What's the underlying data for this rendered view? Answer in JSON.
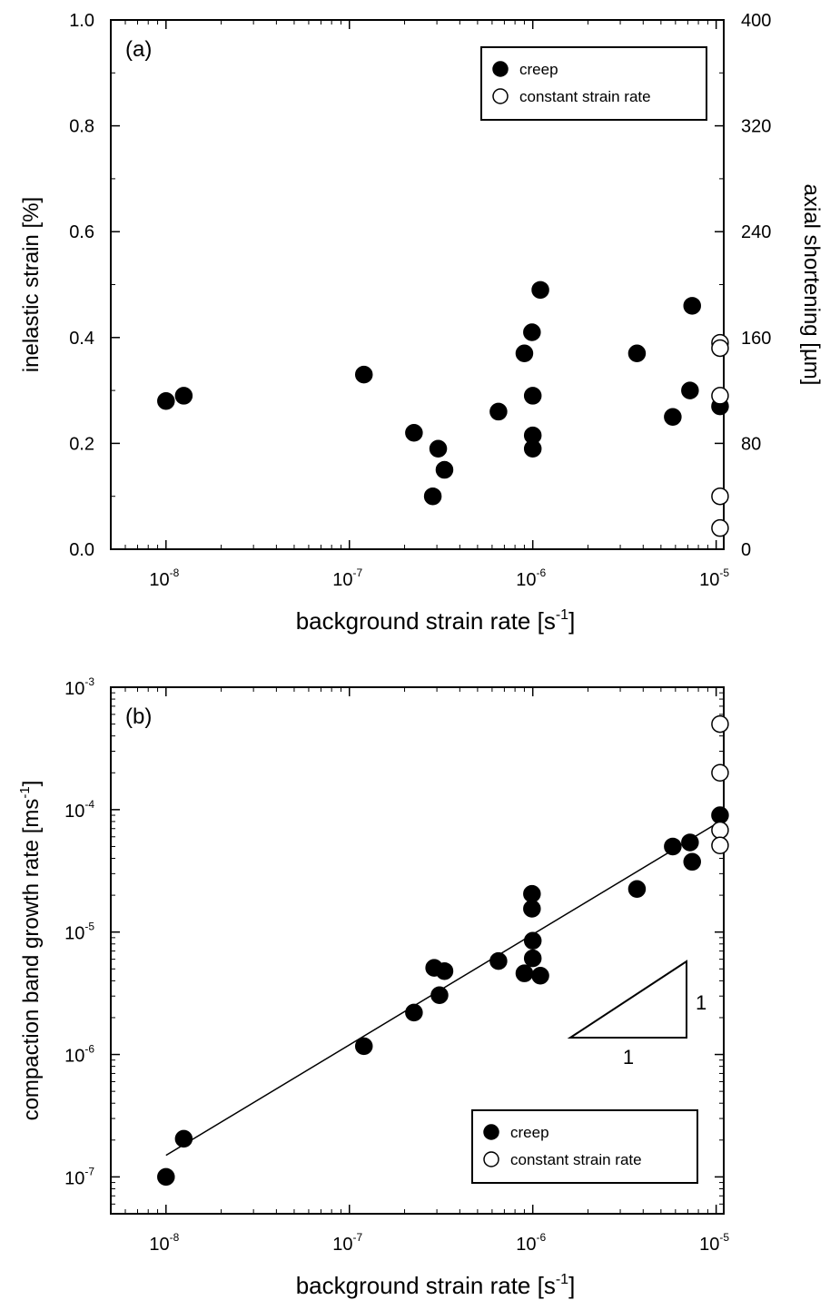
{
  "chart_data": [
    {
      "type": "scatter",
      "panel_label": "(a)",
      "xlabel": "background strain rate [s",
      "xlabel_sup": "-1",
      "xlabel_end": "]",
      "xscale": "log",
      "xlim": [
        5e-09,
        1.1e-05
      ],
      "x_ticks": [
        {
          "value": 1e-08,
          "base": "10",
          "exp": "-8"
        },
        {
          "value": 1e-07,
          "base": "10",
          "exp": "-7"
        },
        {
          "value": 1e-06,
          "base": "10",
          "exp": "-6"
        },
        {
          "value": 1e-05,
          "base": "10",
          "exp": "-5"
        }
      ],
      "ylabel": "inelastic strain [%]",
      "ylim": [
        0,
        1.0
      ],
      "y_ticks": [
        "0.0",
        "0.2",
        "0.4",
        "0.6",
        "0.8",
        "1.0"
      ],
      "y2label": "axial shortening [µm]",
      "y2lim": [
        0,
        400
      ],
      "y2_ticks": [
        "0",
        "80",
        "160",
        "240",
        "320",
        "400"
      ],
      "legend_position": "top-right",
      "series": [
        {
          "name": "creep",
          "marker": "filled-circle",
          "points": [
            [
              1e-08,
              0.28
            ],
            [
              1.25e-08,
              0.29
            ],
            [
              1.2e-07,
              0.33
            ],
            [
              2.25e-07,
              0.22
            ],
            [
              2.85e-07,
              0.1
            ],
            [
              3.05e-07,
              0.19
            ],
            [
              3.3e-07,
              0.15
            ],
            [
              6.5e-07,
              0.26
            ],
            [
              9e-07,
              0.37
            ],
            [
              9.9e-07,
              0.41
            ],
            [
              1e-06,
              0.29
            ],
            [
              1e-06,
              0.215
            ],
            [
              1e-06,
              0.19
            ],
            [
              1.1e-06,
              0.49
            ],
            [
              3.7e-06,
              0.37
            ],
            [
              5.8e-06,
              0.25
            ],
            [
              7.2e-06,
              0.3
            ],
            [
              7.4e-06,
              0.46
            ],
            [
              1.05e-05,
              0.27
            ]
          ]
        },
        {
          "name": "constant strain rate",
          "marker": "open-circle",
          "points": [
            [
              1.05e-05,
              0.39
            ],
            [
              1.05e-05,
              0.38
            ],
            [
              1.05e-05,
              0.29
            ],
            [
              1.05e-05,
              0.1
            ],
            [
              1.05e-05,
              0.04
            ]
          ]
        }
      ]
    },
    {
      "type": "scatter",
      "panel_label": "(b)",
      "xlabel": "background strain rate [s",
      "xlabel_sup": "-1",
      "xlabel_end": "]",
      "xscale": "log",
      "xlim": [
        5e-09,
        1.1e-05
      ],
      "x_ticks": [
        {
          "value": 1e-08,
          "base": "10",
          "exp": "-8"
        },
        {
          "value": 1e-07,
          "base": "10",
          "exp": "-7"
        },
        {
          "value": 1e-06,
          "base": "10",
          "exp": "-6"
        },
        {
          "value": 1e-05,
          "base": "10",
          "exp": "-5"
        }
      ],
      "ylabel": "compaction band growth rate [ms",
      "ylabel_sup": "-1",
      "ylabel_end": "]",
      "yscale": "log",
      "ylim": [
        5e-08,
        0.001
      ],
      "y_ticks": [
        {
          "value": 1e-07,
          "base": "10",
          "exp": "-7"
        },
        {
          "value": 1e-06,
          "base": "10",
          "exp": "-6"
        },
        {
          "value": 1e-05,
          "base": "10",
          "exp": "-5"
        },
        {
          "value": 0.0001,
          "base": "10",
          "exp": "-4"
        },
        {
          "value": 0.001,
          "base": "10",
          "exp": "-3"
        }
      ],
      "legend_position": "bottom-right",
      "fit_line": {
        "x": [
          1e-08,
          1.05e-05
        ],
        "y": [
          1.5e-07,
          8e-05
        ]
      },
      "slope_triangle": {
        "vertical_label": "1",
        "horizontal_label": "1"
      },
      "series": [
        {
          "name": "creep",
          "marker": "filled-circle",
          "points": [
            [
              1e-08,
              1e-07
            ],
            [
              1.25e-08,
              2.05e-07
            ],
            [
              1.2e-07,
              1.17e-06
            ],
            [
              2.25e-07,
              2.2e-06
            ],
            [
              2.9e-07,
              5.1e-06
            ],
            [
              3.1e-07,
              3.05e-06
            ],
            [
              3.3e-07,
              4.8e-06
            ],
            [
              6.5e-07,
              5.8e-06
            ],
            [
              9e-07,
              4.6e-06
            ],
            [
              9.9e-07,
              2.05e-05
            ],
            [
              9.9e-07,
              1.55e-05
            ],
            [
              1e-06,
              8.5e-06
            ],
            [
              1e-06,
              6.1e-06
            ],
            [
              1.1e-06,
              4.4e-06
            ],
            [
              3.7e-06,
              2.25e-05
            ],
            [
              5.8e-06,
              5e-05
            ],
            [
              7.2e-06,
              5.4e-05
            ],
            [
              7.4e-06,
              3.75e-05
            ],
            [
              1.05e-05,
              9e-05
            ]
          ]
        },
        {
          "name": "constant strain rate",
          "marker": "open-circle",
          "points": [
            [
              1.05e-05,
              0.0005
            ],
            [
              1.05e-05,
              0.0002
            ],
            [
              1.05e-05,
              6.8e-05
            ],
            [
              1.05e-05,
              5.1e-05
            ]
          ]
        }
      ]
    }
  ]
}
